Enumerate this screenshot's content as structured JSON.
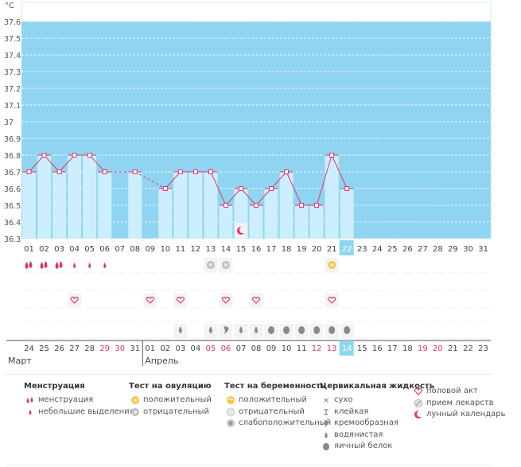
{
  "chart_data": {
    "type": "bar",
    "y_unit_label": "°C",
    "ylim": [
      36.3,
      37.7
    ],
    "y_ticks": [
      "36.3",
      "36.4",
      "36.5",
      "36.6",
      "36.7",
      "36.8",
      "36.9",
      "37",
      "37.1",
      "37.2",
      "37.3",
      "37.4",
      "37.5",
      "37.6"
    ],
    "cycle_days": [
      "01",
      "02",
      "03",
      "04",
      "05",
      "06",
      "07",
      "08",
      "09",
      "10",
      "11",
      "12",
      "13",
      "14",
      "15",
      "16",
      "17",
      "18",
      "19",
      "20",
      "21",
      "22",
      "23",
      "24",
      "25",
      "26",
      "27",
      "28",
      "29",
      "30",
      "31"
    ],
    "highlight_cycle_day": "22",
    "temperatures": [
      36.7,
      36.8,
      36.7,
      36.8,
      36.8,
      36.7,
      null,
      36.7,
      null,
      36.6,
      36.7,
      36.7,
      36.7,
      36.5,
      36.6,
      36.5,
      36.6,
      36.7,
      36.5,
      36.5,
      36.8,
      36.6,
      null,
      null,
      null,
      null,
      null,
      null,
      null,
      null,
      null
    ],
    "line_segments": [
      [
        1,
        6
      ],
      [
        10,
        22
      ]
    ],
    "dashed_segments": [
      [
        6,
        8
      ],
      [
        8,
        10
      ]
    ],
    "calendar_dates": [
      "24",
      "25",
      "26",
      "27",
      "28",
      "29",
      "30",
      "31",
      "01",
      "02",
      "03",
      "04",
      "05",
      "06",
      "07",
      "08",
      "09",
      "10",
      "11",
      "12",
      "13",
      "14",
      "15",
      "16",
      "17",
      "18",
      "19",
      "20",
      "21",
      "22",
      "23"
    ],
    "red_dates": [
      "29",
      "30",
      "05",
      "06",
      "12",
      "13",
      "19",
      "20"
    ],
    "highlight_date": "14",
    "month_labels": [
      "Март",
      "Апрель"
    ],
    "moon_day": 15,
    "symptom_rows": {
      "menstruation": {
        "1": "heavy",
        "2": "heavy",
        "3": "heavy",
        "4": "light",
        "5": "light",
        "6": "light"
      },
      "ovulation_test": {
        "13": "negative",
        "14": "negative",
        "21": "positive"
      },
      "intercourse": [
        4,
        9,
        11,
        14,
        16,
        21
      ],
      "cervical_fluid": {
        "11": "watery",
        "13": "watery",
        "14": "creamy",
        "15": "watery",
        "16": "watery",
        "17": "eggwhite",
        "18": "eggwhite",
        "19": "eggwhite",
        "20": "eggwhite",
        "21": "eggwhite",
        "22": "eggwhite"
      }
    }
  },
  "colors": {
    "sky": "#8fd5f1",
    "bar": "#cdeefc",
    "line": "#e0346f",
    "red": "#e0346f",
    "highlight": "#8fd5f1",
    "grid": "#ffffff"
  },
  "legend": {
    "groups": [
      {
        "title": "Менструация",
        "items": [
          {
            "icon": "menstruation-icon",
            "label": "менструация"
          },
          {
            "icon": "light-spotting-icon",
            "label": "небольшие выделения"
          }
        ]
      },
      {
        "title": "Тест на овуляцию",
        "items": [
          {
            "icon": "positive-test-icon",
            "label": "положительный"
          },
          {
            "icon": "negative-test-icon",
            "label": "отрицательный"
          }
        ]
      },
      {
        "title": "Тест на беременность",
        "items": [
          {
            "icon": "pregnancy-positive-icon",
            "label": "положительный"
          },
          {
            "icon": "pregnancy-negative-icon",
            "label": "отрицательный"
          },
          {
            "icon": "pregnancy-weak-icon",
            "label": "слабоположительный"
          }
        ]
      },
      {
        "title": "Цервикальная жидкость",
        "items": [
          {
            "icon": "dry-icon",
            "label": "сухо"
          },
          {
            "icon": "sticky-icon",
            "label": "клейкая"
          },
          {
            "icon": "creamy-icon",
            "label": "кремообразная"
          },
          {
            "icon": "watery-icon",
            "label": "водянистая"
          },
          {
            "icon": "egg-white-icon",
            "label": "яичный белок"
          }
        ]
      },
      {
        "title": "",
        "items": [
          {
            "icon": "heart-icon",
            "label": "половой акт"
          },
          {
            "icon": "medication-icon",
            "label": "прием лекарств"
          },
          {
            "icon": "moon-icon",
            "label": "лунный календарь"
          }
        ]
      }
    ]
  }
}
